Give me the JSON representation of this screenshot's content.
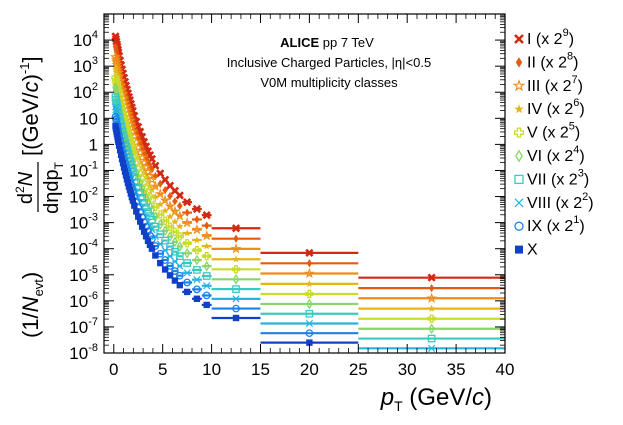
{
  "chart_data": {
    "type": "scatter",
    "title": "",
    "notes": {
      "line1_bold": "ALICE",
      "line1_rest": " pp 7 TeV",
      "line2": "Inclusive Charged Particles, |η|<0.5",
      "line3": "V0M multiplicity classes"
    },
    "xlabel": {
      "main": "p",
      "sub": "T",
      "unit": " (GeV/",
      "unit_italic": "c",
      "close": ")"
    },
    "ylabel": {
      "prefix": "(1/",
      "n": "N",
      "n_sub": "evt",
      "close": ")",
      "num_sup": "2",
      "num_n": "N",
      "den": "dηdp",
      "den_sub": "T",
      "unit": "[(GeV/",
      "unit_italic": "c",
      "unit_close": ")",
      "unit_sup": "-1",
      "unit_end": "]"
    },
    "xlim": [
      -1,
      40
    ],
    "ylim": [
      1e-08,
      100000.0
    ],
    "yscale": "log",
    "xticks": [
      0,
      5,
      10,
      15,
      20,
      25,
      30,
      35,
      40
    ],
    "yticks": [
      {
        "v": 1e-08,
        "b": "10",
        "e": "-8"
      },
      {
        "v": 1e-07,
        "b": "10",
        "e": "-7"
      },
      {
        "v": 1e-06,
        "b": "10",
        "e": "-6"
      },
      {
        "v": 1e-05,
        "b": "10",
        "e": "-5"
      },
      {
        "v": 0.0001,
        "b": "10",
        "e": "-4"
      },
      {
        "v": 0.001,
        "b": "10",
        "e": "-3"
      },
      {
        "v": 0.01,
        "b": "10",
        "e": "-2"
      },
      {
        "v": 0.1,
        "b": "10",
        "e": "-1"
      },
      {
        "v": 1,
        "b": "1",
        "e": ""
      },
      {
        "v": 10,
        "b": "10",
        "e": ""
      },
      {
        "v": 100,
        "b": "10",
        "e": "2"
      },
      {
        "v": 1000,
        "b": "10",
        "e": "3"
      },
      {
        "v": 10000,
        "b": "10",
        "e": "4"
      }
    ],
    "grid": false,
    "legend_position": "right",
    "bins": [
      [
        0.15,
        0.2
      ],
      [
        0.2,
        0.25
      ],
      [
        0.25,
        0.3
      ],
      [
        0.3,
        0.35
      ],
      [
        0.35,
        0.4
      ],
      [
        0.4,
        0.45
      ],
      [
        0.45,
        0.5
      ],
      [
        0.5,
        0.6
      ],
      [
        0.6,
        0.7
      ],
      [
        0.7,
        0.8
      ],
      [
        0.8,
        0.9
      ],
      [
        0.9,
        1.0
      ],
      [
        1.0,
        1.1
      ],
      [
        1.1,
        1.2
      ],
      [
        1.2,
        1.3
      ],
      [
        1.3,
        1.4
      ],
      [
        1.4,
        1.5
      ],
      [
        1.5,
        1.6
      ],
      [
        1.6,
        1.7
      ],
      [
        1.7,
        1.8
      ],
      [
        1.8,
        1.9
      ],
      [
        1.9,
        2.0
      ],
      [
        2.0,
        2.2
      ],
      [
        2.2,
        2.4
      ],
      [
        2.4,
        2.6
      ],
      [
        2.6,
        2.8
      ],
      [
        2.8,
        3.0
      ],
      [
        3.0,
        3.2
      ],
      [
        3.2,
        3.4
      ],
      [
        3.4,
        3.6
      ],
      [
        3.6,
        3.8
      ],
      [
        3.8,
        4.0
      ],
      [
        4.0,
        4.5
      ],
      [
        4.5,
        5.0
      ],
      [
        5.0,
        5.5
      ],
      [
        5.5,
        6.0
      ],
      [
        6.0,
        6.5
      ],
      [
        6.5,
        7.0
      ],
      [
        7.0,
        8.0
      ],
      [
        8.0,
        9.0
      ],
      [
        9.0,
        10.0
      ],
      [
        10.0,
        15.0
      ],
      [
        15.0,
        25.0
      ],
      [
        25.0,
        40.0
      ]
    ],
    "base_values": [
      5.0,
      4.0,
      3.2,
      2.5,
      2.0,
      1.55,
      1.25,
      0.9,
      0.6,
      0.4,
      0.27,
      0.19,
      0.13,
      0.09,
      0.065,
      0.046,
      0.033,
      0.024,
      0.018,
      0.013,
      0.0095,
      0.007,
      0.0045,
      0.0027,
      0.0017,
      0.0011,
      0.0007,
      0.00045,
      0.0003,
      0.0002,
      0.00014,
      0.0001,
      5.5e-05,
      2.8e-05,
      1.6e-05,
      9.5e-06,
      6e-06,
      4e-06,
      2.2e-06,
      1.2e-06,
      7e-07,
      2.2e-07,
      2.5e-08,
      2.8e-09
    ],
    "series": [
      {
        "name": "I",
        "scale_exp": "9",
        "mult": 5.4,
        "color": "#d22a12",
        "marker": "x-thick"
      },
      {
        "name": "II",
        "scale_exp": "8",
        "mult": 4.3,
        "color": "#e65a0e",
        "marker": "diamond"
      },
      {
        "name": "III",
        "scale_exp": "7",
        "mult": 3.5,
        "color": "#ef8c18",
        "marker": "star-open"
      },
      {
        "name": "IV",
        "scale_exp": "6",
        "mult": 2.8,
        "color": "#e6b416",
        "marker": "star"
      },
      {
        "name": "V",
        "scale_exp": "5",
        "mult": 2.3,
        "color": "#c8dc2c",
        "marker": "cross-open"
      },
      {
        "name": "VI",
        "scale_exp": "4",
        "mult": 1.9,
        "color": "#8ad46a",
        "marker": "diamond-open"
      },
      {
        "name": "VII",
        "scale_exp": "3",
        "mult": 1.6,
        "color": "#3ccac0",
        "marker": "square-open"
      },
      {
        "name": "VIII",
        "scale_exp": "2",
        "mult": 1.35,
        "color": "#26b2e2",
        "marker": "x-thin"
      },
      {
        "name": "IX",
        "scale_exp": "1",
        "mult": 1.15,
        "color": "#1a82e6",
        "marker": "circle-open"
      },
      {
        "name": "X",
        "scale_exp": "",
        "mult": 1.0,
        "color": "#1040c8",
        "marker": "square"
      }
    ]
  }
}
